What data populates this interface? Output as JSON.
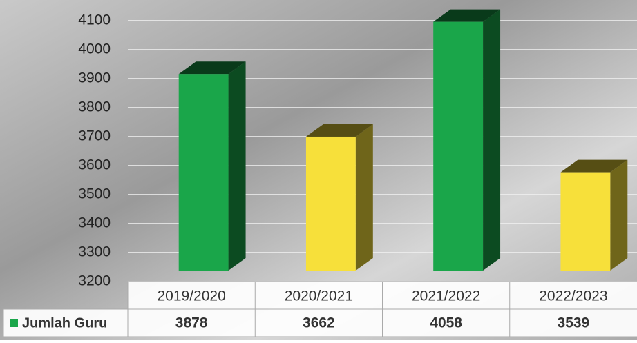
{
  "chart_data": {
    "type": "bar3d",
    "categories": [
      "2019/2020",
      "2020/2021",
      "2021/2022",
      "2022/2023"
    ],
    "series": [
      {
        "name": "Jumlah Guru",
        "color": "#1aa64a",
        "values": [
          3878,
          3662,
          4058,
          3539
        ],
        "colors": [
          "#1aa64a",
          "#f7e03a",
          "#1aa64a",
          "#f7e03a"
        ]
      }
    ],
    "ylim": [
      3200,
      4100
    ],
    "yticks": [
      3200,
      3300,
      3400,
      3500,
      3600,
      3700,
      3800,
      3900,
      4000,
      4100
    ],
    "grid": true
  }
}
